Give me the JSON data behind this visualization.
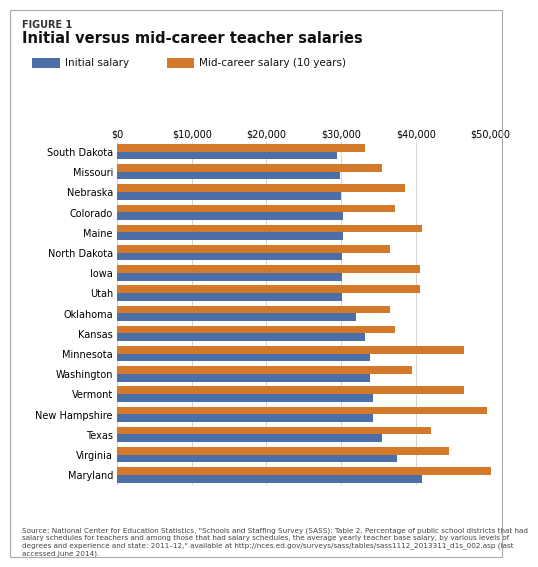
{
  "title_figure": "FIGURE 1",
  "title": "Initial versus mid-career teacher salaries",
  "legend_initial": "Initial salary",
  "legend_mid": "Mid-career salary (10 years)",
  "color_initial": "#4d6fa8",
  "color_mid": "#d4782a",
  "states": [
    "South Dakota",
    "Missouri",
    "Nebraska",
    "Colorado",
    "Maine",
    "North Dakota",
    "Iowa",
    "Utah",
    "Oklahoma",
    "Kansas",
    "Minnesota",
    "Washington",
    "Vermont",
    "New Hampshire",
    "Texas",
    "Virginia",
    "Maryland"
  ],
  "initial_salary": [
    29500,
    29800,
    30000,
    30200,
    30200,
    30100,
    30100,
    30100,
    32000,
    33200,
    33800,
    33800,
    34200,
    34200,
    35500,
    37500,
    40800
  ],
  "mid_salary": [
    33200,
    35500,
    38500,
    37200,
    40800,
    36500,
    40500,
    40500,
    36500,
    37200,
    46500,
    39500,
    46500,
    49500,
    42000,
    44500,
    52500
  ],
  "xlim": [
    0,
    50000
  ],
  "xticks": [
    0,
    10000,
    20000,
    30000,
    40000,
    50000
  ],
  "xticklabels": [
    "$0",
    "$10,000",
    "$20,000",
    "$30,000",
    "$40,000",
    "$50,000"
  ],
  "source_text": "Source: National Center for Education Statistics, \"Schools and Staffing Survey (SASS): Table 2. Percentage of public school districts that had\nsalary schedules for teachers and among those that had salary schedules, the average yearly teacher base salary, by various levels of\ndegrees and experience and state: 2011–12,\" available at http://nces.ed.gov/surveys/sass/tables/sass1112_2013311_d1s_002.asp (last\naccessed June 2014).",
  "background_color": "#ffffff",
  "bar_height": 0.38,
  "fig_width": 4.98,
  "fig_height": 5.54
}
